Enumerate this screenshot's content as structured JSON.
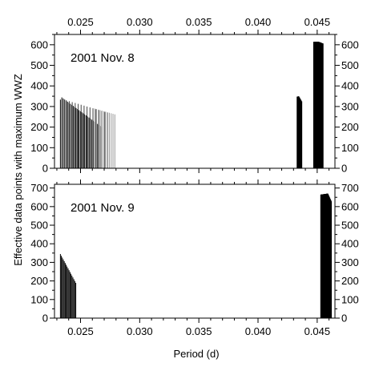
{
  "figure": {
    "xlabel": "Period (d)",
    "ylabel": "Effective data points with maximum WWZ"
  },
  "x_ticks": [
    "0.025",
    "0.030",
    "0.035",
    "0.040",
    "0.045"
  ],
  "chart_data": [
    {
      "type": "bar",
      "panel_label": "2001 Nov. 8",
      "xlabel": "Period (d)",
      "ylabel": "Effective data points with maximum WWZ",
      "xlim": [
        0.0228,
        0.0465
      ],
      "ylim": [
        0,
        650
      ],
      "x_ticks": [
        0.025,
        0.03,
        0.035,
        0.04,
        0.045
      ],
      "y_ticks": [
        0,
        100,
        200,
        300,
        400,
        500,
        600
      ],
      "y_tick_labels": [
        "0",
        "100",
        "200",
        "300",
        "400",
        "500",
        "600"
      ],
      "series": [
        {
          "color": "#000000",
          "x_range": [
            0.0233,
            0.0268
          ],
          "y_start": 345,
          "y_end": 200,
          "step": 0.00012,
          "peak_at": 0.0234
        },
        {
          "color": "#444444",
          "x_range": [
            0.0238,
            0.0273
          ],
          "y_start": 330,
          "y_end": 270,
          "step": 0.00025
        },
        {
          "color": "#9a9a9a",
          "x_range": [
            0.0262,
            0.0279
          ],
          "y_start": 290,
          "y_end": 262,
          "step": 0.00015
        },
        {
          "color": "#000000",
          "x_range": [
            0.0433,
            0.0437
          ],
          "y_start": 350,
          "y_end": 325,
          "step": 4e-05,
          "peak_at": 0.04345
        },
        {
          "color": "#000000",
          "x_range": [
            0.0447,
            0.0455
          ],
          "y_start": 600,
          "y_end": 615,
          "step": 2e-05,
          "peak_at": 0.0451
        }
      ]
    },
    {
      "type": "bar",
      "panel_label": "2001 Nov. 9",
      "xlabel": "Period (d)",
      "ylabel": "Effective data points with maximum WWZ",
      "xlim": [
        0.0228,
        0.0465
      ],
      "ylim": [
        0,
        720
      ],
      "x_ticks": [
        0.025,
        0.03,
        0.035,
        0.04,
        0.045
      ],
      "y_ticks": [
        0,
        100,
        200,
        300,
        400,
        500,
        600,
        700
      ],
      "y_tick_labels": [
        "0",
        "100",
        "200",
        "300",
        "400",
        "500",
        "600",
        "700"
      ],
      "series": [
        {
          "color": "#000000",
          "x_range": [
            0.0233,
            0.0246
          ],
          "y_start": 345,
          "y_end": 190,
          "step": 8e-05
        },
        {
          "color": "#000000",
          "x_range": [
            0.0453,
            0.0462
          ],
          "y_start": 600,
          "y_end": 670,
          "step": 2e-05,
          "peak_at": 0.0459
        }
      ]
    }
  ]
}
